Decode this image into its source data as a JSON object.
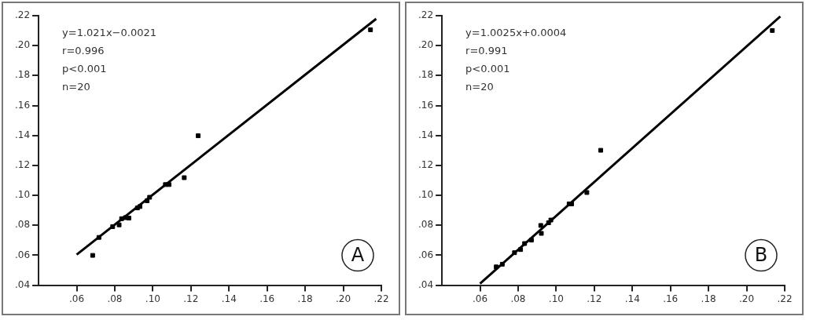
{
  "chart_data": [
    {
      "type": "scatter",
      "marker": "square",
      "grid": false,
      "legend": false,
      "annotations": [
        "y=1.021x−0.0021",
        "r=0.996",
        "p<0.001",
        "n=20",
        "A"
      ],
      "xlim": [
        0.04,
        0.22
      ],
      "ylim": [
        0.04,
        0.22
      ],
      "xticks": [
        {
          "value": 0.06,
          "label": ".06"
        },
        {
          "value": 0.08,
          "label": ".08"
        },
        {
          "value": 0.1,
          "label": ".10"
        },
        {
          "value": 0.12,
          "label": ".12"
        },
        {
          "value": 0.14,
          "label": ".14"
        },
        {
          "value": 0.16,
          "label": ".16"
        },
        {
          "value": 0.18,
          "label": ".18"
        },
        {
          "value": 0.2,
          "label": ".20"
        },
        {
          "value": 0.22,
          "label": ".22"
        }
      ],
      "yticks": [
        {
          "value": 0.04,
          "label": ".04"
        },
        {
          "value": 0.06,
          "label": ".06"
        },
        {
          "value": 0.08,
          "label": ".08"
        },
        {
          "value": 0.1,
          "label": ".10"
        },
        {
          "value": 0.12,
          "label": ".12"
        },
        {
          "value": 0.14,
          "label": ".14"
        },
        {
          "value": 0.16,
          "label": ".16"
        },
        {
          "value": 0.18,
          "label": ".18"
        },
        {
          "value": 0.2,
          "label": ".20"
        },
        {
          "value": 0.22,
          "label": ".22"
        }
      ],
      "series": [
        {
          "color": "#000000",
          "x": [
            0.0684,
            0.0717,
            0.0789,
            0.0823,
            0.0836,
            0.0856,
            0.0874,
            0.0919,
            0.0932,
            0.097,
            0.0983,
            0.1066,
            0.1085,
            0.1165,
            0.1238,
            0.2143
          ],
          "values": [
            0.0599,
            0.0719,
            0.0791,
            0.0803,
            0.0844,
            0.0851,
            0.0848,
            0.0916,
            0.0925,
            0.0964,
            0.0987,
            0.1072,
            0.1072,
            0.1118,
            0.1398,
            0.2106
          ]
        },
        {
          "type": "line",
          "marker": "none",
          "color": "#000000",
          "x": [
            0.06,
            0.2173
          ],
          "values": [
            0.0604,
            0.2179
          ]
        }
      ]
    },
    {
      "type": "scatter",
      "marker": "square",
      "grid": false,
      "legend": false,
      "annotations": [
        "y=1.0025x+0.0004",
        "r=0.991",
        "p<0.001",
        "n=20",
        "B"
      ],
      "xlim": [
        0.04,
        0.22
      ],
      "ylim": [
        0.04,
        0.22
      ],
      "xticks": [
        {
          "value": 0.06,
          "label": ".06"
        },
        {
          "value": 0.08,
          "label": ".08"
        },
        {
          "value": 0.1,
          "label": ".10"
        },
        {
          "value": 0.12,
          "label": ".12"
        },
        {
          "value": 0.14,
          "label": ".14"
        },
        {
          "value": 0.16,
          "label": ".16"
        },
        {
          "value": 0.18,
          "label": ".18"
        },
        {
          "value": 0.2,
          "label": ".20"
        },
        {
          "value": 0.22,
          "label": ".22"
        }
      ],
      "yticks": [
        {
          "value": 0.04,
          "label": ".04"
        },
        {
          "value": 0.06,
          "label": ".06"
        },
        {
          "value": 0.08,
          "label": ".08"
        },
        {
          "value": 0.1,
          "label": ".10"
        },
        {
          "value": 0.12,
          "label": ".12"
        },
        {
          "value": 0.14,
          "label": ".14"
        },
        {
          "value": 0.16,
          "label": ".16"
        },
        {
          "value": 0.18,
          "label": ".18"
        },
        {
          "value": 0.2,
          "label": ".20"
        },
        {
          "value": 0.22,
          "label": ".22"
        }
      ],
      "series": [
        {
          "color": "#000000",
          "x": [
            0.0685,
            0.0717,
            0.0781,
            0.0813,
            0.0834,
            0.087,
            0.0919,
            0.0922,
            0.096,
            0.0972,
            0.1068,
            0.1081,
            0.1161,
            0.1234,
            0.2135
          ],
          "values": [
            0.0522,
            0.054,
            0.0617,
            0.0638,
            0.0678,
            0.0701,
            0.0799,
            0.0746,
            0.0817,
            0.0835,
            0.0943,
            0.0943,
            0.1019,
            0.1301,
            0.2101
          ]
        },
        {
          "type": "line",
          "marker": "none",
          "color": "#000000",
          "x": [
            0.06,
            0.2177
          ],
          "values": [
            0.041,
            0.2195
          ]
        }
      ]
    }
  ]
}
